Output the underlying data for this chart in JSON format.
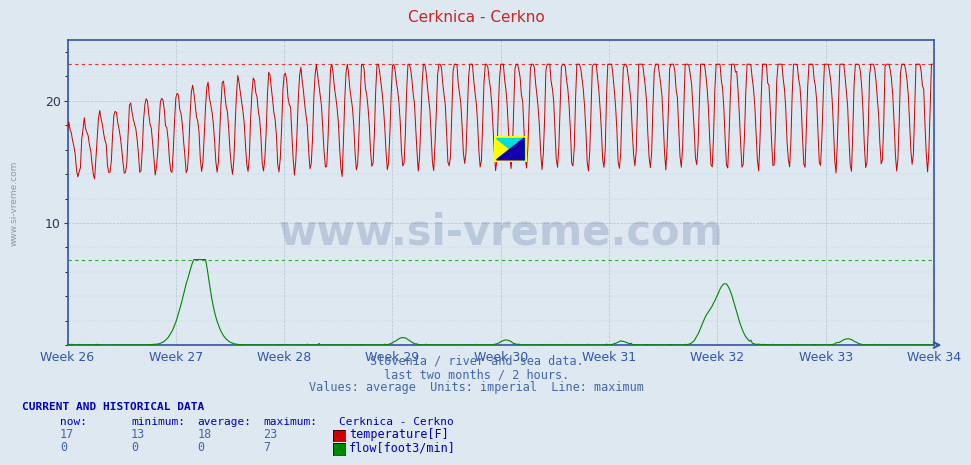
{
  "title": "Cerknica - Cerkno",
  "title_color": "#cc2222",
  "bg_color": "#dde8f0",
  "plot_bg_color": "#dde8f0",
  "xlim": [
    0,
    672
  ],
  "ylim": [
    0,
    25
  ],
  "yticks": [
    10,
    20
  ],
  "week_labels": [
    "Week 26",
    "Week 27",
    "Week 28",
    "Week 29",
    "Week 30",
    "Week 31",
    "Week 32",
    "Week 33",
    "Week 34"
  ],
  "week_positions": [
    0,
    84,
    168,
    252,
    336,
    420,
    504,
    588,
    672
  ],
  "temp_color": "#cc0000",
  "flow_color": "#008800",
  "temp_max": 23,
  "flow_max": 7,
  "temp_max_color": "#ee3333",
  "flow_max_color": "#33aa33",
  "subtitle1": "Slovenia / river and sea data.",
  "subtitle2": "last two months / 2 hours.",
  "subtitle3": "Values: average  Units: imperial  Line: maximum",
  "subtitle_color": "#4466aa",
  "watermark": "www.si-vreme.com",
  "watermark_color": "#1a3a7a",
  "table_header": "CURRENT AND HISTORICAL DATA",
  "table_color": "#0000bb",
  "col_headers": [
    "now:",
    "minimum:",
    "average:",
    "maximum:",
    "Cerknica - Cerkno"
  ],
  "temp_now": "17",
  "temp_min": "13",
  "temp_avg": "18",
  "temp_max_val": "23",
  "temp_label": "temperature[F]",
  "flow_now": "0",
  "flow_min": "0",
  "flow_avg": "0",
  "flow_max_val": "7",
  "flow_label": "flow[foot3/min]",
  "n_points": 672,
  "logo_colors": [
    "#ffff00",
    "#00dddd",
    "#0000aa"
  ],
  "spine_color": "#3355aa",
  "tick_color": "#3355aa",
  "grid_color": "#aabbcc"
}
